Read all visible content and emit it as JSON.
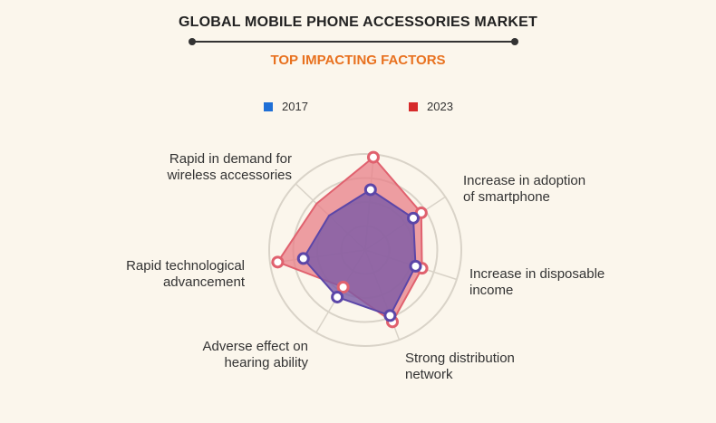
{
  "chart_data": {
    "type": "radar",
    "title": "GLOBAL MOBILE PHONE ACCESSORIES MARKET",
    "subtitle": "TOP IMPACTING FACTORS",
    "categories": [
      "Rapid in demand for\nwireless accessories",
      "Increase in adoption\nof smartphone",
      "Increase in disposable\nincome",
      "Strong distribution\nnetwork",
      "Adverse effect on\nhearing ability",
      "Rapid technological\nadvancement",
      ""
    ],
    "series": [
      {
        "name": "2017",
        "color": "#1f6fd6",
        "values": [
          0.63,
          0.6,
          0.55,
          0.73,
          0.57,
          0.65,
          0.52
        ]
      },
      {
        "name": "2023",
        "color": "#d62a2a",
        "values": [
          0.97,
          0.7,
          0.62,
          0.8,
          0.45,
          0.92,
          0.7
        ]
      }
    ],
    "rmax": 1,
    "rings": 4,
    "legend_position": "top"
  },
  "colors": {
    "fill_2023": "#e87f88",
    "fill_2017": "#7b5aa6",
    "stroke_2023": "#e0616e",
    "stroke_2017": "#5b46a8",
    "ring": "#d9d3c8"
  }
}
